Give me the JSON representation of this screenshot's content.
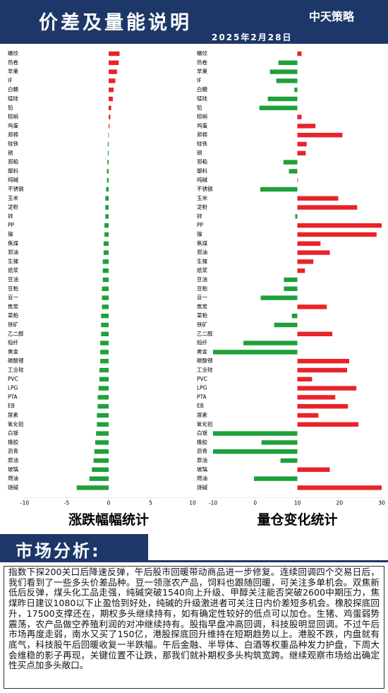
{
  "header": {
    "title": "价差及量能说明",
    "date": "2025年2月28日",
    "logo": "中天策略"
  },
  "chart_data": [
    {
      "type": "hbar",
      "xlabel": "涨跌幅幅统计",
      "xlim": [
        -10,
        10
      ],
      "xticks": [
        -10,
        -5,
        0,
        5,
        10
      ],
      "positive_color": "#e8242a",
      "negative_color": "#1fa03a",
      "categories": [
        "螺纹",
        "热卷",
        "苹果",
        "IF",
        "白糖",
        "锰硅",
        "铅",
        "棕榈",
        "鸡蛋",
        "郑棉",
        "硅铁",
        "铜",
        "郑粕",
        "塑料",
        "纯碱",
        "不锈钢",
        "玉米",
        "淀粉",
        "锌",
        "PP",
        "镍",
        "焦煤",
        "郑油",
        "生猪",
        "纸浆",
        "豆油",
        "豆粕",
        "豆一",
        "焦炭",
        "菜粕",
        "铁矿",
        "乙二醇",
        "短纤",
        "黄金",
        "碳酸锂",
        "工业硅",
        "PVC",
        "LPG",
        "PTA",
        "EB",
        "尿素",
        "氧化铝",
        "白银",
        "橡胶",
        "沥青",
        "原油",
        "玻璃",
        "燃油",
        "烧碱"
      ],
      "values": [
        1.3,
        1.2,
        1.0,
        0.8,
        0.6,
        0.5,
        0.3,
        0.2,
        0.1,
        -0.05,
        -0.1,
        -0.1,
        -0.15,
        -0.2,
        -0.2,
        -0.3,
        -0.4,
        -0.4,
        -0.4,
        -0.5,
        -0.5,
        -0.6,
        -0.6,
        -0.7,
        -0.7,
        -0.7,
        -0.8,
        -0.8,
        -0.8,
        -0.9,
        -0.9,
        -0.9,
        -1.0,
        -1.0,
        -1.0,
        -1.1,
        -1.1,
        -1.2,
        -1.3,
        -1.3,
        -1.4,
        -1.4,
        -1.5,
        -1.6,
        -1.7,
        -1.8,
        -2.0,
        -2.3,
        -3.8
      ]
    },
    {
      "type": "hbar",
      "xlabel": "量仓变化统计",
      "xlim": [
        -10,
        30
      ],
      "xticks": [
        -10,
        0,
        10,
        20,
        30
      ],
      "positive_color": "#e8242a",
      "negative_color": "#1fa03a",
      "categories": [
        "螺纹",
        "热卷",
        "苹果",
        "IF",
        "白糖",
        "锰硅",
        "铅",
        "棕榈",
        "鸡蛋",
        "郑棉",
        "硅铁",
        "铜",
        "郑粕",
        "塑料",
        "纯碱",
        "不锈钢",
        "玉米",
        "淀粉",
        "锌",
        "PP",
        "镍",
        "焦煤",
        "郑油",
        "生猪",
        "纸浆",
        "豆油",
        "豆粕",
        "豆一",
        "焦炭",
        "菜粕",
        "铁矿",
        "乙二醇",
        "短纤",
        "黄金",
        "碳酸锂",
        "工业硅",
        "PVC",
        "LPG",
        "PTA",
        "EB",
        "尿素",
        "氧化铝",
        "白银",
        "橡胶",
        "沥青",
        "原油",
        "玻璃",
        "燃油",
        "烧碱"
      ],
      "values": [
        11.0,
        5.5,
        3.5,
        5.0,
        9.3,
        3.0,
        1.0,
        11.0,
        14.3,
        20.7,
        12.2,
        12.0,
        6.7,
        8.0,
        10.0,
        1.2,
        19.7,
        24.2,
        9.5,
        30,
        28.8,
        15.5,
        17.7,
        13.8,
        11.8,
        6.8,
        6.8,
        1.3,
        17.0,
        8.7,
        4.5,
        18.3,
        -2.8,
        -10,
        22.3,
        21.8,
        13.5,
        24.0,
        19.0,
        22.0,
        15.0,
        24.5,
        -10,
        1.5,
        -10,
        6.0,
        17.7,
        -0.3,
        30
      ]
    }
  ],
  "analysis": {
    "title": "市场分析:",
    "text": "指数下探200关口后降速反弹，午后股市回暖带动商品进一步修复。连续回调四个交易日后，我们看到了一些多头价差品种。豆一领涨农产品，饲料也跟随回暖，可关注多单机会。双焦新低后反弹，煤头化工品走强，纯碱突破1540向上升级、甲醇关注能否突破2600中期压力，焦煤昨日建议1080以下止盈恰到好处，纯碱的升级激进者可关注日内价差短多机会。橡胶探底回升，17500支撑还在，期权多头继续持有，如有确定性较好的低点可以加仓。生猪、鸡蛋弱势震荡，农产品做空养殖利润的对冲继续持有。股指早盘冲高回调，科技股明显回调。不过午后市场再度走弱，南水又买了150亿，港股探底回升维持在短期趋势以上。港股不跌，内盘就有底气，科技股午后回暖收复一半跌幅。午后金融、半导体、白酒等权重品种发力护盘，下周大会维稳的影子再现，关键位置不让跌，那我们就补期权多头构筑宽跨。继续观察市场给出确定性买点加多头敞口。"
  }
}
